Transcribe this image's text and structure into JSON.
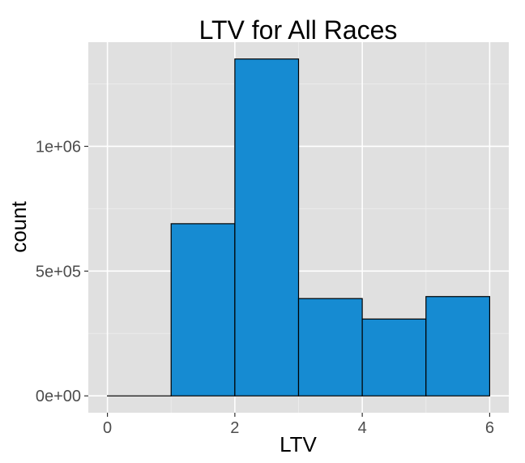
{
  "chart_data": {
    "type": "bar",
    "title": "LTV for All Races",
    "xlabel": "LTV",
    "ylabel": "count",
    "bins": [
      {
        "start": 0,
        "end": 1,
        "count": 0
      },
      {
        "start": 1,
        "end": 2,
        "count": 690000
      },
      {
        "start": 2,
        "end": 3,
        "count": 1350000
      },
      {
        "start": 3,
        "end": 4,
        "count": 390000
      },
      {
        "start": 4,
        "end": 5,
        "count": 308000
      },
      {
        "start": 5,
        "end": 6,
        "count": 398000
      }
    ],
    "xlim": [
      -0.3,
      6.3
    ],
    "ylim": [
      -67500,
      1417500
    ],
    "xticks": [
      0,
      2,
      4,
      6
    ],
    "xtick_labels": [
      "0",
      "2",
      "4",
      "6"
    ],
    "yticks": [
      0,
      500000,
      1000000
    ],
    "ytick_labels": [
      "0e+00",
      "5e+05",
      "1e+06"
    ],
    "grid": true,
    "legend": "none",
    "colors": {
      "bar_fill": "#168BD2",
      "bar_stroke": "#000000",
      "panel_bg": "#E0E0E0",
      "grid_major": "#FFFFFF",
      "grid_minor": "#EBEBEB"
    }
  }
}
